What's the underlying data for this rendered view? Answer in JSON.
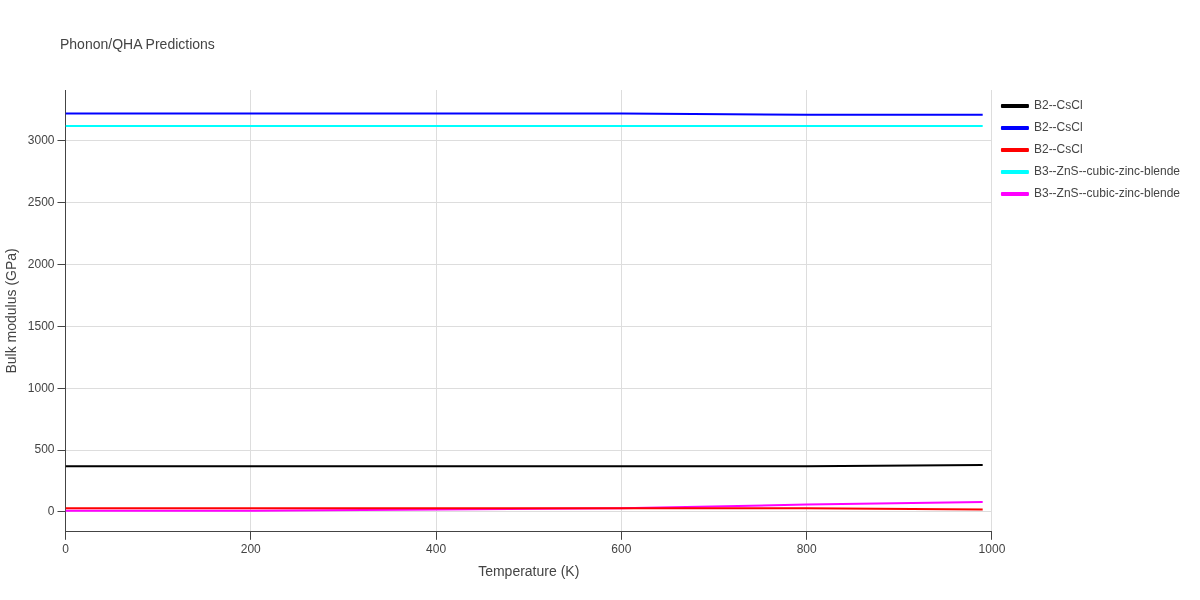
{
  "chart_data": {
    "type": "line",
    "title": "Phonon/QHA Predictions",
    "xlabel": "Temperature (K)",
    "ylabel": "Bulk modulus (GPa)",
    "x": [
      0,
      200,
      400,
      600,
      800,
      990
    ],
    "series": [
      {
        "name": "B2--CsCl",
        "color": "#000000",
        "values": [
          370,
          370,
          370,
          370,
          370,
          380
        ]
      },
      {
        "name": "B2--CsCl",
        "color": "#0000ff",
        "values": [
          3220,
          3220,
          3220,
          3220,
          3210,
          3210
        ]
      },
      {
        "name": "B2--CsCl",
        "color": "#ff0000",
        "values": [
          30,
          30,
          30,
          30,
          30,
          20
        ]
      },
      {
        "name": "B3--ZnS--cubic-zinc-blende",
        "color": "#00ffff",
        "values": [
          3120,
          3120,
          3120,
          3120,
          3120,
          3120
        ]
      },
      {
        "name": "B3--ZnS--cubic-zinc-blende",
        "color": "#ff00ff",
        "values": [
          10,
          10,
          20,
          30,
          60,
          80
        ]
      }
    ],
    "xlim": [
      0,
      1000
    ],
    "xticks": [
      0,
      200,
      400,
      600,
      800,
      1000
    ],
    "ylim": [
      -160,
      3410
    ],
    "yticks": [
      0,
      500,
      1000,
      1500,
      2000,
      2500,
      3000
    ],
    "grid": true,
    "legend": "top right",
    "marker": "none",
    "line_style": "solid"
  }
}
